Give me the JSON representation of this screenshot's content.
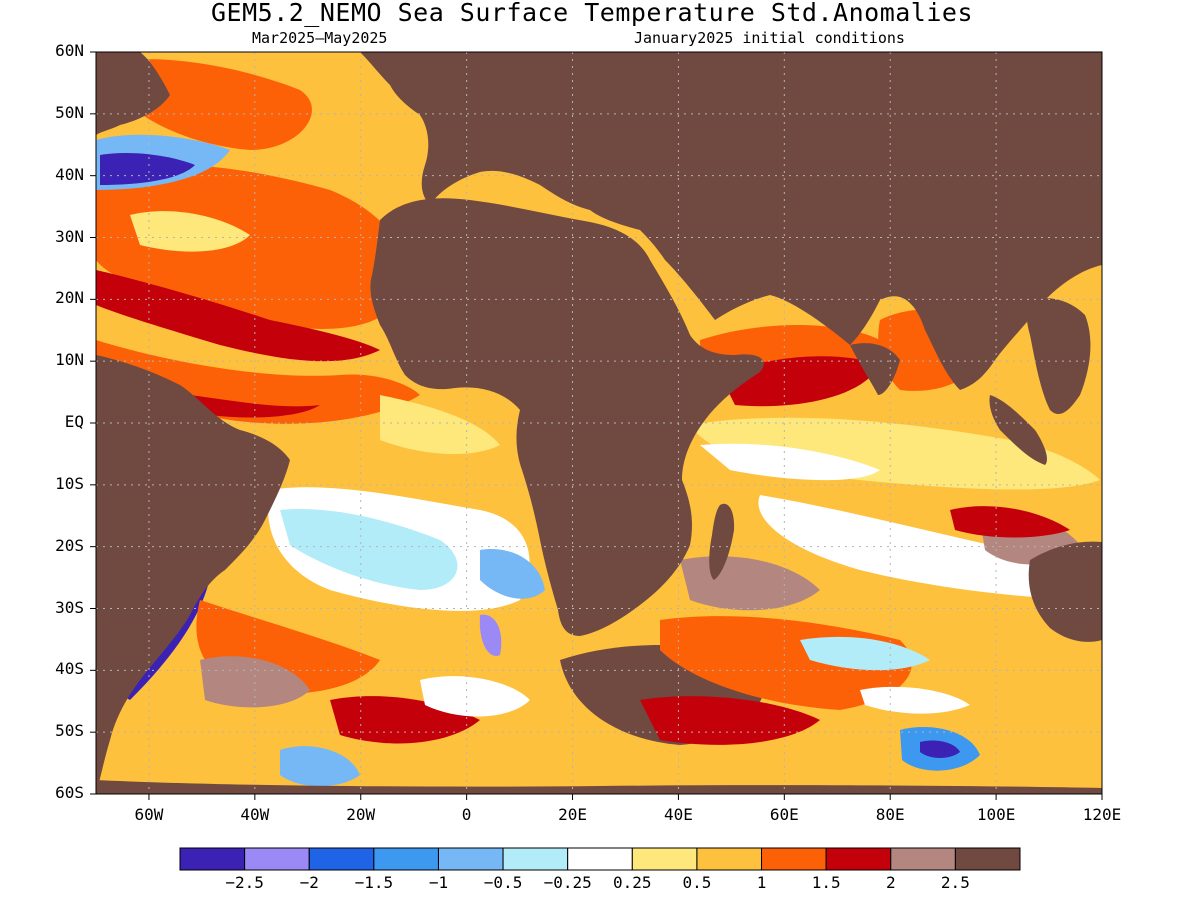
{
  "title": "GEM5.2_NEMO Sea Surface Temperature Std.Anomalies",
  "subtitle_left": "Mar2025–May2025",
  "subtitle_right": "January2025 initial conditions",
  "lat_labels": [
    "60N",
    "50N",
    "40N",
    "30N",
    "20N",
    "10N",
    "EQ",
    "10S",
    "20S",
    "30S",
    "40S",
    "50S",
    "60S"
  ],
  "lon_labels": [
    "60W",
    "40W",
    "20W",
    "0",
    "20E",
    "40E",
    "60E",
    "80E",
    "100E",
    "120E"
  ],
  "colorbar": {
    "colors": [
      "#3b22b5",
      "#9b8af5",
      "#1f63e6",
      "#3d98f0",
      "#76b8f5",
      "#b2ecf8",
      "#ffffff",
      "#fee87c",
      "#fec13d",
      "#fd6108",
      "#c4000b",
      "#b48680",
      "#704a41"
    ],
    "labels": [
      "−2.5",
      "−2",
      "−1.5",
      "−1",
      "−0.5",
      "−0.25",
      "0.25",
      "0.5",
      "1",
      "1.5",
      "2",
      "2.5"
    ]
  },
  "map_colors": {
    "land": "#704a41",
    "coast": "#000000",
    "grid": "#b4b4b4"
  }
}
